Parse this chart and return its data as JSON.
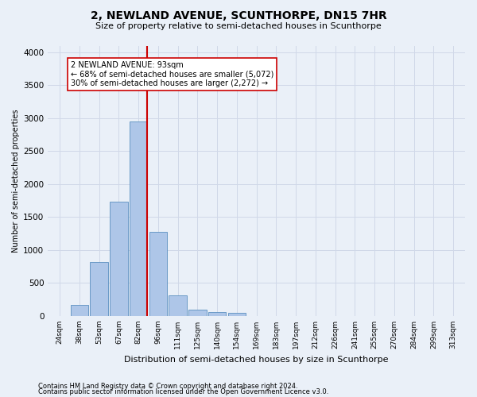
{
  "title": "2, NEWLAND AVENUE, SCUNTHORPE, DN15 7HR",
  "subtitle": "Size of property relative to semi-detached houses in Scunthorpe",
  "xlabel": "Distribution of semi-detached houses by size in Scunthorpe",
  "ylabel": "Number of semi-detached properties",
  "footer_line1": "Contains HM Land Registry data © Crown copyright and database right 2024.",
  "footer_line2": "Contains public sector information licensed under the Open Government Licence v3.0.",
  "categories": [
    "24sqm",
    "38sqm",
    "53sqm",
    "67sqm",
    "82sqm",
    "96sqm",
    "111sqm",
    "125sqm",
    "140sqm",
    "154sqm",
    "169sqm",
    "183sqm",
    "197sqm",
    "212sqm",
    "226sqm",
    "241sqm",
    "255sqm",
    "270sqm",
    "284sqm",
    "299sqm",
    "313sqm"
  ],
  "values": [
    0,
    170,
    820,
    1730,
    2950,
    1270,
    310,
    100,
    60,
    50,
    0,
    0,
    0,
    0,
    0,
    0,
    0,
    0,
    0,
    0,
    0
  ],
  "bar_color": "#aec6e8",
  "bar_edge_color": "#5a8fc0",
  "property_bin_index": 4,
  "property_label": "2 NEWLAND AVENUE: 93sqm",
  "annotation_smaller": "← 68% of semi-detached houses are smaller (5,072)",
  "annotation_larger": "30% of semi-detached houses are larger (2,272) →",
  "red_line_color": "#cc0000",
  "annotation_box_color": "#ffffff",
  "annotation_box_edge_color": "#cc0000",
  "grid_color": "#d0d8e8",
  "background_color": "#eaf0f8",
  "ylim": [
    0,
    4100
  ],
  "yticks": [
    0,
    500,
    1000,
    1500,
    2000,
    2500,
    3000,
    3500,
    4000
  ]
}
